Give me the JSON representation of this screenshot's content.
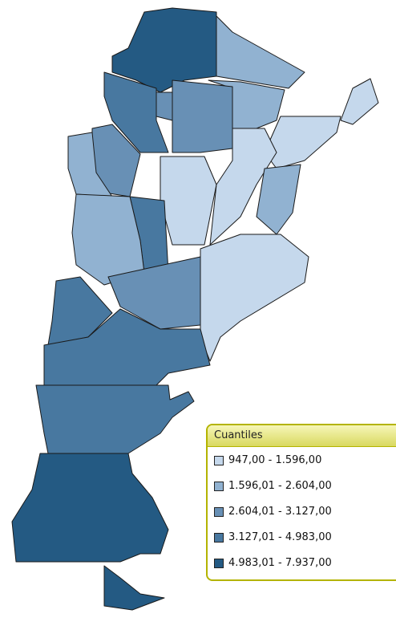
{
  "legend": {
    "title": "Cuantiles",
    "classes": [
      {
        "label": "947,00 - 1.596,00",
        "color": "#c5d8ec"
      },
      {
        "label": "1.596,01 - 2.604,00",
        "color": "#91b2d1"
      },
      {
        "label": "2.604,01 - 3.127,00",
        "color": "#6890b5"
      },
      {
        "label": "3.127,01 - 4.983,00",
        "color": "#4878a0"
      },
      {
        "label": "4.983,01 - 7.937,00",
        "color": "#245a83"
      }
    ]
  }
}
